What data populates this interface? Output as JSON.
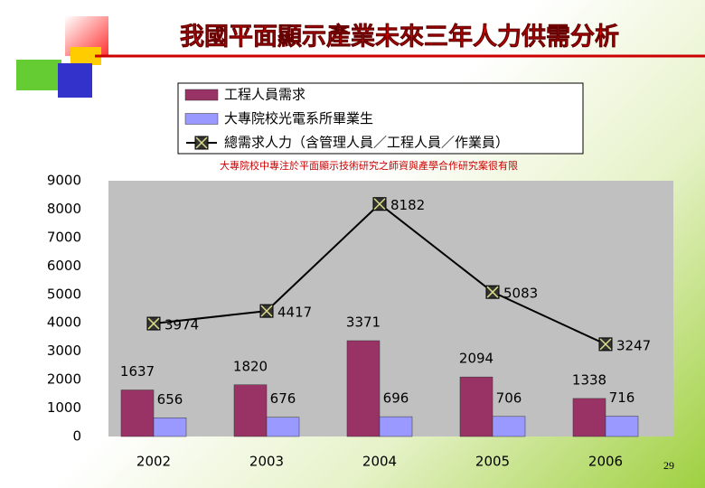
{
  "chart_data": {
    "type": "bar",
    "title": "我國平面顯示產業未來三年人力供需分析",
    "note": "大專院校中專注於平面顯示技術研究之師資與產學合作研究案很有限",
    "categories": [
      "2002",
      "2003",
      "2004",
      "2005",
      "2006"
    ],
    "series": [
      {
        "name": "工程人員需求",
        "color": "#993366",
        "values": [
          1637,
          1820,
          3371,
          2094,
          1338
        ]
      },
      {
        "name": "大專院校光電系所畢業生",
        "color": "#9999ff",
        "values": [
          656,
          676,
          696,
          706,
          716
        ]
      },
      {
        "name": "總需求人力（含管理人員／工程人員／作業員）",
        "type": "line",
        "color": "#000000",
        "values": [
          3974,
          4417,
          8182,
          5083,
          3247
        ]
      }
    ],
    "ylim": [
      0,
      9000
    ],
    "yticks": [
      0,
      1000,
      2000,
      3000,
      4000,
      5000,
      6000,
      7000,
      8000,
      9000
    ],
    "grid": false,
    "plot_background": "#c0c0c0"
  },
  "slide": {
    "page_number": "29"
  }
}
